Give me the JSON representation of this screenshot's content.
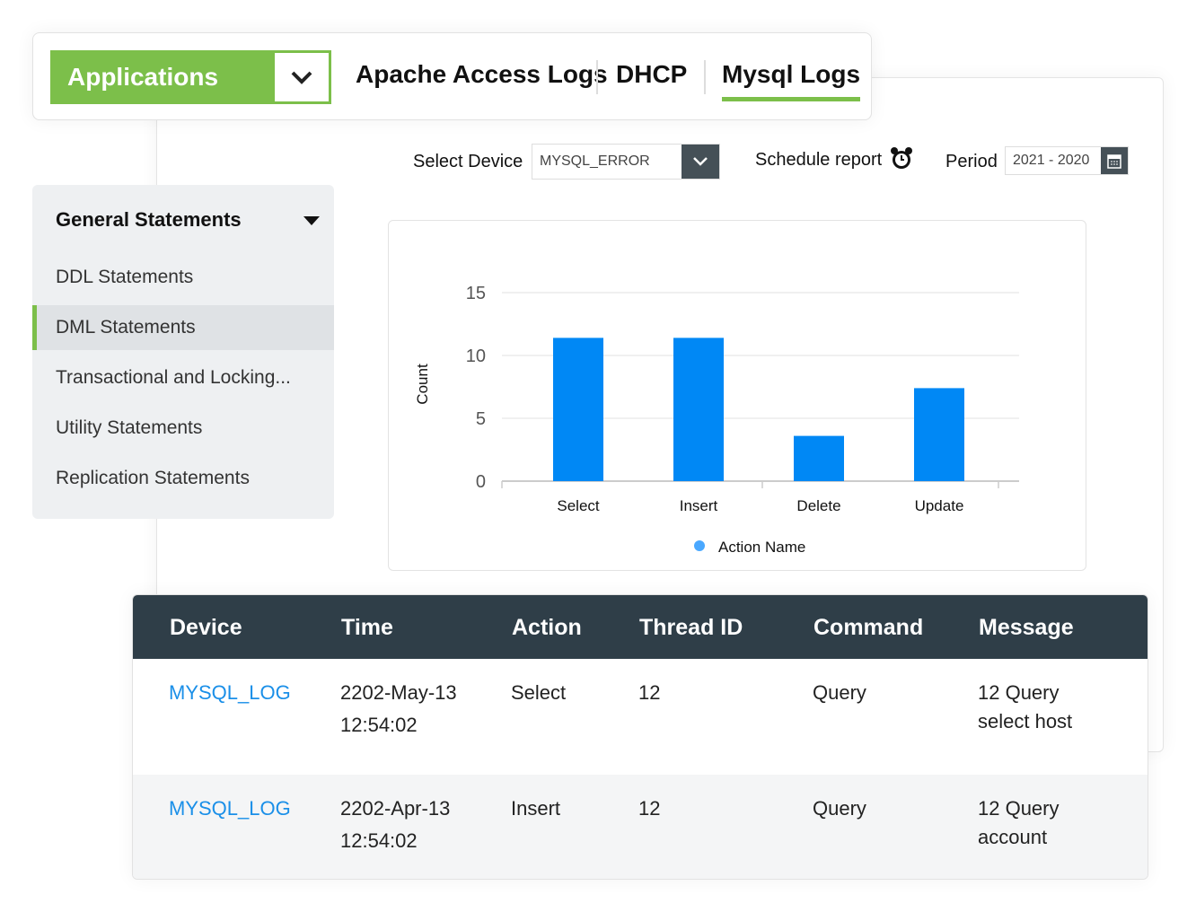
{
  "tabs": {
    "app_selector": "Applications",
    "items": [
      {
        "label": "Apache Access Logs"
      },
      {
        "label": "DHCP"
      },
      {
        "label": "Mysql Logs",
        "active": true
      }
    ]
  },
  "filters": {
    "device_label": "Select Device",
    "device_value": "MYSQL_ERROR",
    "schedule_label": "Schedule report",
    "period_label": "Period",
    "period_value": "2021 - 2020"
  },
  "sidebar": {
    "heading": "General Statements",
    "items": [
      {
        "label": "DDL Statements"
      },
      {
        "label": "DML Statements",
        "active": true
      },
      {
        "label": "Transactional and Locking..."
      },
      {
        "label": "Utility Statements"
      },
      {
        "label": "Replication Statements"
      }
    ]
  },
  "colors": {
    "accent": "#7cbf4a",
    "bar": "#0088f5",
    "header": "#2f3e48",
    "link": "#1a8fe8"
  },
  "chart_data": {
    "type": "bar",
    "categories": [
      "Select",
      "Insert",
      "Delete",
      "Update"
    ],
    "values": [
      11.4,
      11.4,
      3.6,
      7.4
    ],
    "ylabel": "Count",
    "yticks": [
      0,
      5,
      10,
      15
    ],
    "ylim": [
      0,
      15
    ],
    "grid": true,
    "legend": {
      "entries": [
        "Action Name"
      ],
      "placement": "bottom"
    }
  },
  "table": {
    "columns": [
      "Device",
      "Time",
      "Action",
      "Thread ID",
      "Command",
      "Message"
    ],
    "rows": [
      {
        "device": "MYSQL_LOG",
        "time1": "2202-May-13",
        "time2": "12:54:02",
        "action": "Select",
        "thread": "12",
        "command": "Query",
        "msg1": "12 Query",
        "msg2": "select host"
      },
      {
        "device": "MYSQL_LOG",
        "time1": "2202-Apr-13",
        "time2": "12:54:02",
        "action": "Insert",
        "thread": "12",
        "command": "Query",
        "msg1": "12 Query",
        "msg2": "account"
      }
    ]
  }
}
